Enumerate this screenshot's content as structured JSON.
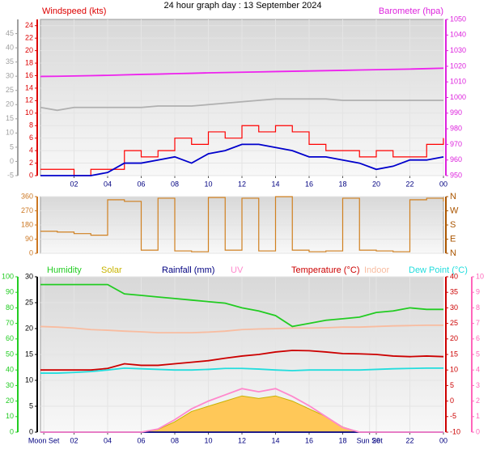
{
  "title": "24 hour graph day : 13 September 2024",
  "chart_data": [
    {
      "type": "line",
      "x": [
        0,
        1,
        2,
        3,
        4,
        5,
        6,
        7,
        8,
        9,
        10,
        11,
        12,
        13,
        14,
        15,
        16,
        17,
        18,
        19,
        20,
        21,
        22,
        23,
        24
      ],
      "xlim": [
        0,
        24
      ],
      "xticks": [
        {
          "value": 2,
          "label": "02"
        },
        {
          "value": 4,
          "label": "04"
        },
        {
          "value": 6,
          "label": "06"
        },
        {
          "value": 8,
          "label": "08"
        },
        10,
        12,
        14,
        16,
        18,
        20,
        22,
        {
          "value": 24,
          "label": "00"
        }
      ],
      "grid": true,
      "grid_axis": 1,
      "axes": [
        {
          "side": "left",
          "color": "#a0a0a0",
          "lim": [
            -5,
            50
          ],
          "ticks": [
            -5,
            0,
            5,
            10,
            15,
            20,
            25,
            30,
            35,
            40,
            45
          ]
        },
        {
          "side": "left",
          "label": "Windspeed (kts)",
          "color": "#dd0000",
          "lim": [
            0,
            25
          ],
          "ticks": [
            0,
            2,
            4,
            6,
            8,
            10,
            12,
            14,
            16,
            18,
            20,
            22,
            24
          ]
        },
        {
          "side": "right",
          "label": "Barometer (hpa)",
          "color": "#dd22dd",
          "lim": [
            950,
            1050
          ],
          "ticks": [
            950,
            960,
            970,
            980,
            990,
            1000,
            1010,
            1020,
            1030,
            1040,
            1050
          ]
        }
      ],
      "series": [
        {
          "axis": 0,
          "color": "#b0b0b0",
          "values": [
            19,
            18,
            19,
            19,
            19,
            19,
            19,
            19.5,
            19.5,
            19.5,
            20,
            20.5,
            21,
            21.5,
            22,
            22,
            22,
            22,
            21.5,
            21.5,
            21.5,
            21.5,
            21.5,
            21.5,
            21.5
          ]
        },
        {
          "axis": 2,
          "color": "#ee22ee",
          "values": [
            1013.5,
            1013.6,
            1013.8,
            1014,
            1014.2,
            1014.5,
            1014.8,
            1015,
            1015.3,
            1015.5,
            1015.8,
            1016,
            1016.2,
            1016.4,
            1016.6,
            1016.8,
            1017,
            1017.2,
            1017.4,
            1017.6,
            1017.8,
            1018,
            1018.2,
            1018.5,
            1018.8
          ]
        },
        {
          "axis": 1,
          "color": "#ff0000",
          "style": "step",
          "values": [
            1,
            1,
            0,
            1,
            1,
            4,
            3,
            4,
            6,
            5,
            7,
            6,
            8,
            7,
            8,
            7,
            5,
            4,
            4,
            3,
            4,
            3,
            3,
            5,
            6
          ]
        },
        {
          "axis": 1,
          "color": "#0000cc",
          "values": [
            0,
            0,
            0,
            0,
            0.5,
            2,
            2,
            2.5,
            3,
            2,
            3.5,
            4,
            5,
            5,
            4.5,
            4,
            3,
            3,
            2.5,
            2,
            1,
            1.5,
            2.5,
            2.5,
            3
          ]
        }
      ]
    },
    {
      "type": "line",
      "x": [
        0,
        1,
        2,
        3,
        4,
        5,
        6,
        7,
        8,
        9,
        10,
        11,
        12,
        13,
        14,
        15,
        16,
        17,
        18,
        19,
        20,
        21,
        22,
        23,
        24
      ],
      "xlim": [
        0,
        24
      ],
      "grid": true,
      "grid_axis": 0,
      "axes": [
        {
          "side": "left",
          "color": "#cc7722",
          "lim": [
            0,
            360
          ],
          "ticks": [
            0,
            90,
            180,
            270,
            360
          ]
        },
        {
          "side": "right",
          "color": "#aa5500",
          "lim": [
            0,
            360
          ],
          "ticks": [
            {
              "value": 0,
              "label": "N"
            },
            {
              "value": 90,
              "label": "E"
            },
            {
              "value": 180,
              "label": "S"
            },
            {
              "value": 270,
              "label": "W"
            },
            {
              "value": 360,
              "label": "N"
            }
          ]
        }
      ],
      "series": [
        {
          "axis": 0,
          "color": "#d08020",
          "style": "step",
          "values": [
            140,
            135,
            125,
            115,
            340,
            330,
            20,
            350,
            15,
            10,
            355,
            20,
            350,
            15,
            360,
            20,
            10,
            15,
            350,
            20,
            15,
            10,
            340,
            350,
            330
          ]
        }
      ]
    },
    {
      "type": "line",
      "x": [
        0,
        1,
        2,
        3,
        4,
        5,
        6,
        7,
        8,
        9,
        10,
        11,
        12,
        13,
        14,
        15,
        16,
        17,
        18,
        19,
        20,
        21,
        22,
        23,
        24
      ],
      "xlim": [
        0,
        24
      ],
      "xticks": [
        {
          "value": 0.2,
          "label": "Moon Set"
        },
        {
          "value": 2,
          "label": "02"
        },
        {
          "value": 4,
          "label": "04"
        },
        {
          "value": 6,
          "label": "06"
        },
        {
          "value": 8,
          "label": "08"
        },
        10,
        12,
        14,
        16,
        18,
        {
          "value": 19.6,
          "label": "Sun Set"
        },
        20,
        22,
        {
          "value": 24,
          "label": "00"
        }
      ],
      "grid": true,
      "grid_axis": 1,
      "axes": [
        {
          "side": "left",
          "color": "#22cc22",
          "lim": [
            0,
            100
          ],
          "ticks": [
            0,
            10,
            20,
            30,
            40,
            50,
            60,
            70,
            80,
            90,
            100
          ]
        },
        {
          "side": "left",
          "color": "#000000",
          "lim": [
            0,
            30
          ],
          "ticks": [
            0,
            5,
            10,
            15,
            20,
            25,
            30
          ]
        },
        {
          "side": "right",
          "color": "#cc0000",
          "lim": [
            -10,
            40
          ],
          "ticks": [
            -10,
            -5,
            0,
            5,
            10,
            15,
            20,
            25,
            30,
            35,
            40
          ]
        },
        {
          "side": "right",
          "color": "#ff66bb",
          "lim": [
            0,
            10
          ],
          "ticks": [
            0,
            1,
            2,
            3,
            4,
            5,
            6,
            7,
            8,
            9,
            10
          ]
        }
      ],
      "series": [
        {
          "name": "Humidity",
          "axis": 0,
          "color": "#22cc22",
          "values": [
            95,
            95,
            95,
            95,
            95,
            89,
            88,
            87,
            86,
            85,
            84,
            83,
            80,
            78,
            75,
            68,
            70,
            72,
            73,
            74,
            77,
            78,
            80,
            79,
            79
          ]
        },
        {
          "name": "Solar",
          "axis": 1,
          "color": "#c8b400",
          "fill": "#ffc858",
          "values": [
            0,
            0,
            0,
            0,
            0,
            0,
            0,
            0.5,
            2,
            4,
            5,
            6,
            7,
            6.5,
            7,
            6,
            4.5,
            3,
            1,
            0,
            0,
            0,
            0,
            0,
            0
          ]
        },
        {
          "name": "Rainfall (mm)",
          "axis": 1,
          "color": "#000080",
          "values": [
            0,
            0,
            0,
            0,
            0,
            0,
            0,
            0,
            0,
            0,
            0,
            0,
            0,
            0,
            0,
            0,
            0,
            0,
            0,
            0,
            0,
            0,
            0,
            0,
            0
          ]
        },
        {
          "name": "UV",
          "axis": 3,
          "color": "#ff88cc",
          "values": [
            0,
            0,
            0,
            0,
            0,
            0,
            0,
            0.2,
            0.8,
            1.5,
            2,
            2.4,
            2.8,
            2.6,
            2.8,
            2.3,
            1.7,
            1,
            0.3,
            0,
            0,
            0,
            0,
            0,
            0
          ]
        },
        {
          "name": "Temperature (°C)",
          "axis": 2,
          "color": "#cc0000",
          "values": [
            10,
            10,
            10,
            10,
            10.5,
            12,
            11.5,
            11.5,
            12,
            12.5,
            13,
            13.8,
            14.5,
            15,
            15.8,
            16.3,
            16.2,
            15.8,
            15.3,
            15.2,
            15,
            14.5,
            14.3,
            14.5,
            14.3
          ]
        },
        {
          "name": "Indoor",
          "axis": 2,
          "color": "#f8bca0",
          "values": [
            24,
            23.8,
            23.5,
            23,
            22.8,
            22.5,
            22.3,
            22,
            22,
            22,
            22.2,
            22.5,
            23,
            23.2,
            23.3,
            23.5,
            23.5,
            23.6,
            23.8,
            23.8,
            24,
            24.2,
            24.3,
            24.4,
            24.4
          ]
        },
        {
          "name": "Dew Point (°C)",
          "axis": 2,
          "color": "#22dddd",
          "values": [
            9,
            9,
            9.2,
            9.5,
            10,
            10.6,
            10.4,
            10.2,
            10,
            10,
            10.2,
            10.5,
            10.5,
            10.3,
            10,
            9.8,
            10,
            10,
            10,
            10,
            10.2,
            10.4,
            10.5,
            10.6,
            10.6
          ]
        }
      ]
    }
  ]
}
